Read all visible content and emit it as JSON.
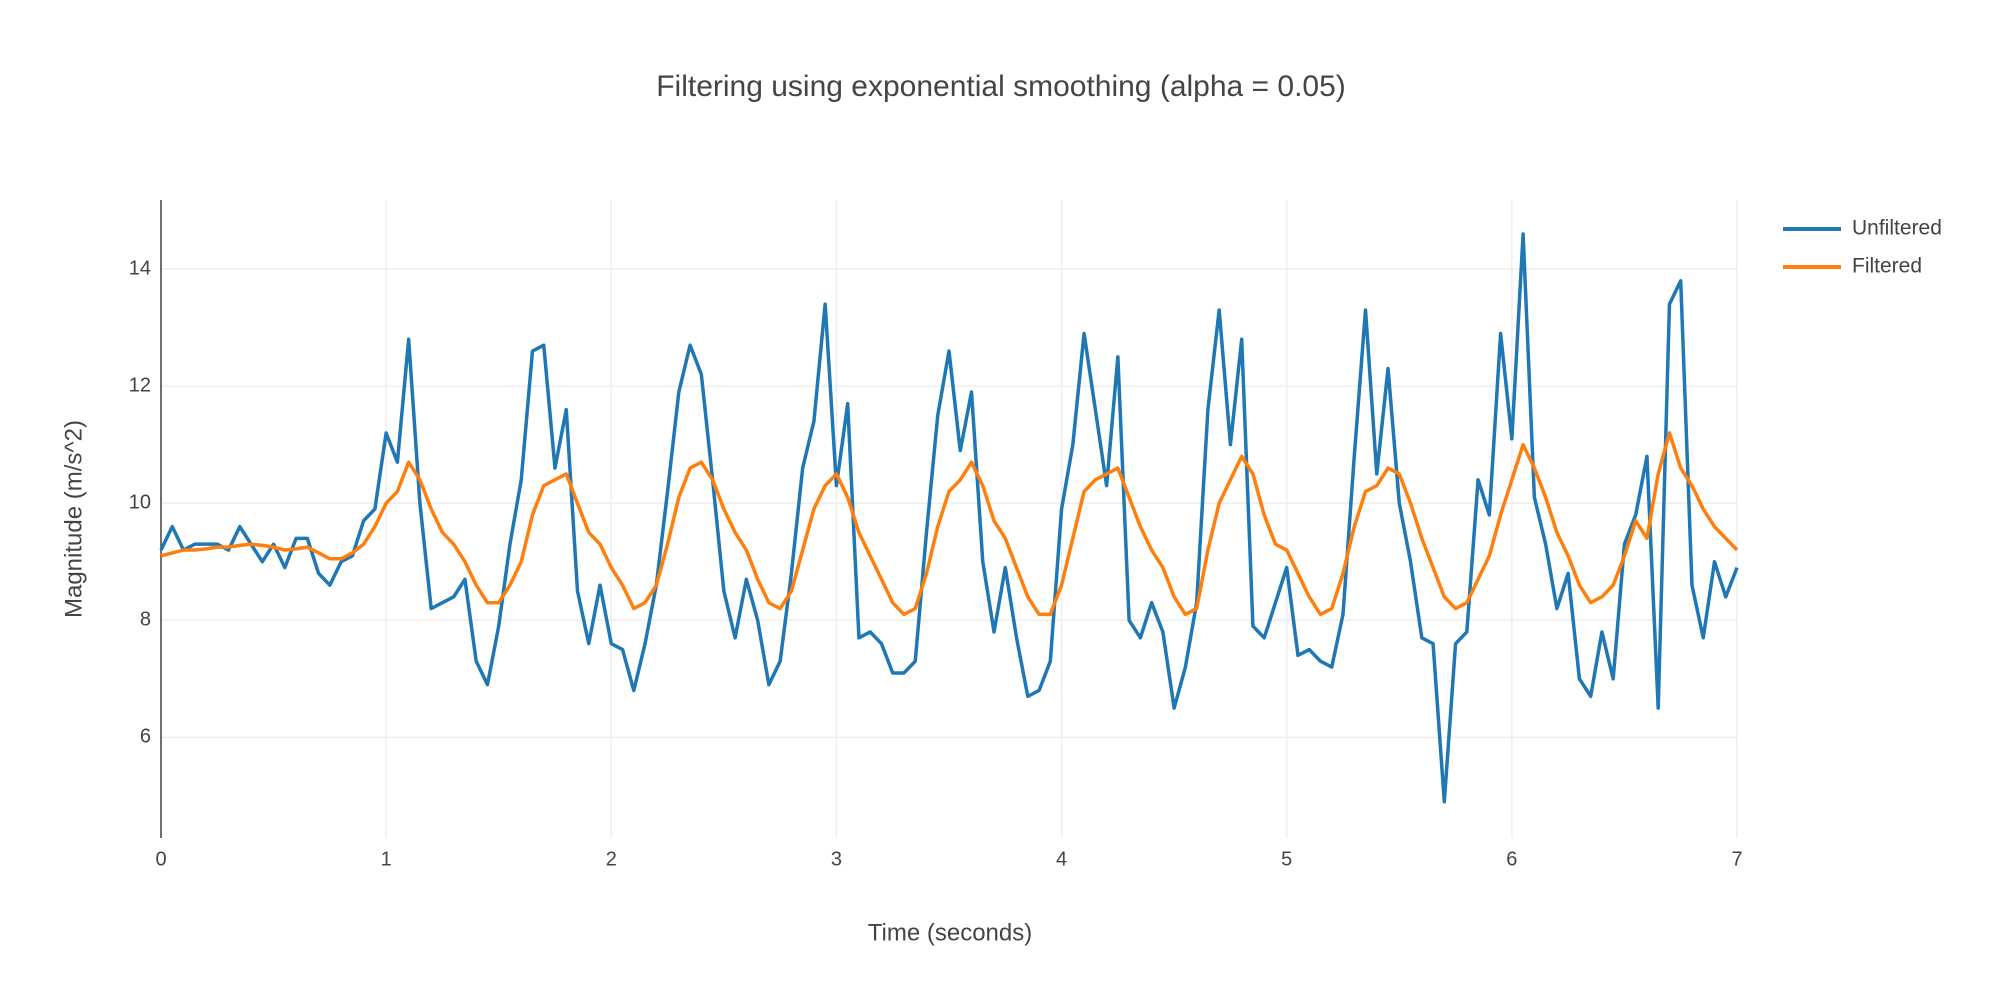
{
  "chart_data": {
    "type": "line",
    "title": "Filtering using exponential smoothing (alpha = 0.05)",
    "x_label": "Time (seconds)",
    "y_label": "Magnitude (m/s^2)",
    "x": [
      0,
      0.05,
      0.1,
      0.15,
      0.2,
      0.25,
      0.3,
      0.35,
      0.4,
      0.45,
      0.5,
      0.55,
      0.6,
      0.65,
      0.7,
      0.75,
      0.8,
      0.85,
      0.9,
      0.95,
      1,
      1.05,
      1.1,
      1.15,
      1.2,
      1.25,
      1.3,
      1.35,
      1.4,
      1.45,
      1.5,
      1.55,
      1.6,
      1.65,
      1.7,
      1.75,
      1.8,
      1.85,
      1.9,
      1.95,
      2,
      2.05,
      2.1,
      2.15,
      2.2,
      2.25,
      2.3,
      2.35,
      2.4,
      2.45,
      2.5,
      2.55,
      2.6,
      2.65,
      2.7,
      2.75,
      2.8,
      2.85,
      2.9,
      2.95,
      3,
      3.05,
      3.1,
      3.15,
      3.2,
      3.25,
      3.3,
      3.35,
      3.4,
      3.45,
      3.5,
      3.55,
      3.6,
      3.65,
      3.7,
      3.75,
      3.8,
      3.85,
      3.9,
      3.95,
      4,
      4.05,
      4.1,
      4.15,
      4.2,
      4.25,
      4.3,
      4.35,
      4.4,
      4.45,
      4.5,
      4.55,
      4.6,
      4.65,
      4.7,
      4.75,
      4.8,
      4.85,
      4.9,
      4.95,
      5,
      5.05,
      5.1,
      5.15,
      5.2,
      5.25,
      5.3,
      5.35,
      5.4,
      5.45,
      5.5,
      5.55,
      5.6,
      5.65,
      5.7,
      5.75,
      5.8,
      5.85,
      5.9,
      5.95,
      6,
      6.05,
      6.1,
      6.15,
      6.2,
      6.25,
      6.3,
      6.35,
      6.4,
      6.45,
      6.5,
      6.55,
      6.6,
      6.65,
      6.7,
      6.75,
      6.8,
      6.85,
      6.9,
      6.95,
      7
    ],
    "series": [
      {
        "name": "Unfiltered",
        "color": "#1f77b4",
        "values": [
          9.2,
          9.6,
          9.2,
          9.3,
          9.3,
          9.3,
          9.2,
          9.6,
          9.3,
          9.0,
          9.3,
          8.9,
          9.4,
          9.4,
          8.8,
          8.6,
          9.0,
          9.1,
          9.7,
          9.9,
          11.2,
          10.7,
          12.8,
          10.0,
          8.2,
          8.3,
          8.4,
          8.7,
          7.3,
          6.9,
          7.9,
          9.3,
          10.4,
          12.6,
          12.7,
          10.6,
          11.6,
          8.5,
          7.6,
          8.6,
          7.6,
          7.5,
          6.8,
          7.6,
          8.6,
          10.2,
          11.9,
          12.7,
          12.2,
          10.4,
          8.5,
          7.7,
          8.7,
          8.0,
          6.9,
          7.3,
          8.8,
          10.6,
          11.4,
          13.4,
          10.3,
          11.7,
          7.7,
          7.8,
          7.6,
          7.1,
          7.1,
          7.3,
          9.5,
          11.5,
          12.6,
          10.9,
          11.9,
          9.0,
          7.8,
          8.9,
          7.7,
          6.7,
          6.8,
          7.3,
          9.9,
          11.0,
          12.9,
          11.6,
          10.3,
          12.5,
          8.0,
          7.7,
          8.3,
          7.8,
          6.5,
          7.2,
          8.3,
          11.6,
          13.3,
          11.0,
          12.8,
          7.9,
          7.7,
          8.3,
          8.9,
          7.4,
          7.5,
          7.3,
          7.2,
          8.1,
          10.8,
          13.3,
          10.5,
          12.3,
          10.0,
          9.0,
          7.7,
          7.6,
          4.9,
          7.6,
          7.8,
          10.4,
          9.8,
          12.9,
          11.1,
          14.6,
          10.1,
          9.3,
          8.2,
          8.8,
          7.0,
          6.7,
          7.8,
          7.0,
          9.3,
          9.8,
          10.8,
          6.5,
          13.4,
          13.8,
          8.6,
          7.7,
          9.0,
          8.4,
          8.9
        ]
      },
      {
        "name": "Filtered",
        "color": "#ff7f0e",
        "values": [
          9.1,
          9.15,
          9.2,
          9.2,
          9.22,
          9.25,
          9.25,
          9.28,
          9.3,
          9.28,
          9.25,
          9.2,
          9.22,
          9.25,
          9.15,
          9.05,
          9.05,
          9.15,
          9.3,
          9.6,
          10.0,
          10.2,
          10.7,
          10.4,
          9.9,
          9.5,
          9.3,
          9.0,
          8.6,
          8.3,
          8.3,
          8.6,
          9.0,
          9.8,
          10.3,
          10.4,
          10.5,
          10.0,
          9.5,
          9.3,
          8.9,
          8.6,
          8.2,
          8.3,
          8.6,
          9.3,
          10.1,
          10.6,
          10.7,
          10.4,
          9.9,
          9.5,
          9.2,
          8.7,
          8.3,
          8.2,
          8.5,
          9.2,
          9.9,
          10.3,
          10.5,
          10.1,
          9.5,
          9.1,
          8.7,
          8.3,
          8.1,
          8.2,
          8.8,
          9.6,
          10.2,
          10.4,
          10.7,
          10.3,
          9.7,
          9.4,
          8.9,
          8.4,
          8.1,
          8.1,
          8.6,
          9.4,
          10.2,
          10.4,
          10.5,
          10.6,
          10.1,
          9.6,
          9.2,
          8.9,
          8.4,
          8.1,
          8.2,
          9.2,
          10.0,
          10.4,
          10.8,
          10.5,
          9.8,
          9.3,
          9.2,
          8.8,
          8.4,
          8.1,
          8.2,
          8.8,
          9.6,
          10.2,
          10.3,
          10.6,
          10.5,
          10.0,
          9.4,
          8.9,
          8.4,
          8.2,
          8.3,
          8.7,
          9.1,
          9.8,
          10.4,
          11.0,
          10.6,
          10.1,
          9.5,
          9.1,
          8.6,
          8.3,
          8.4,
          8.6,
          9.1,
          9.7,
          9.4,
          10.5,
          11.2,
          10.6,
          10.3,
          9.9,
          9.6,
          9.4,
          9.2
        ]
      }
    ],
    "xlim": [
      0,
      7
    ],
    "xticks": [
      0,
      1,
      2,
      3,
      4,
      5,
      6,
      7
    ],
    "ylim": [
      4.28,
      15.18
    ],
    "yticks": [
      6,
      8,
      10,
      12,
      14
    ],
    "grid": true,
    "legend": "top-right"
  }
}
